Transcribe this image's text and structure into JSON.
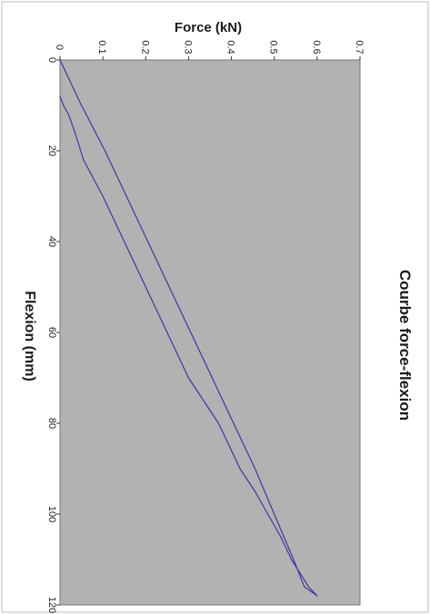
{
  "chart_data": {
    "type": "line",
    "title": "Courbe force-flexion",
    "xlabel": "Flexion (mm)",
    "ylabel": "Force (kN)",
    "xlim": [
      0,
      120
    ],
    "ylim": [
      0,
      0.7
    ],
    "x_ticks": [
      "0",
      "20",
      "40",
      "60",
      "80",
      "100",
      "120"
    ],
    "y_ticks": [
      "0",
      "0.1",
      "0.2",
      "0.3",
      "0.4",
      "0.5",
      "0.6",
      "0.7"
    ],
    "grid": false,
    "legend": "none",
    "orientation": "rotated-90",
    "series": [
      {
        "color": "#3b3aa0",
        "x": [
          0,
          5,
          10,
          20,
          30,
          40,
          50,
          60,
          70,
          80,
          90,
          100,
          110,
          116,
          118,
          116,
          110,
          105,
          100,
          95,
          90,
          85,
          80,
          70,
          60,
          50,
          40,
          30,
          22,
          16,
          12,
          10,
          8
        ],
        "y": [
          0,
          0.025,
          0.05,
          0.105,
          0.155,
          0.205,
          0.255,
          0.305,
          0.355,
          0.405,
          0.455,
          0.5,
          0.545,
          0.57,
          0.6,
          0.58,
          0.54,
          0.515,
          0.485,
          0.455,
          0.42,
          0.395,
          0.37,
          0.3,
          0.25,
          0.2,
          0.15,
          0.1,
          0.055,
          0.035,
          0.02,
          0.008,
          0.0
        ]
      }
    ]
  }
}
